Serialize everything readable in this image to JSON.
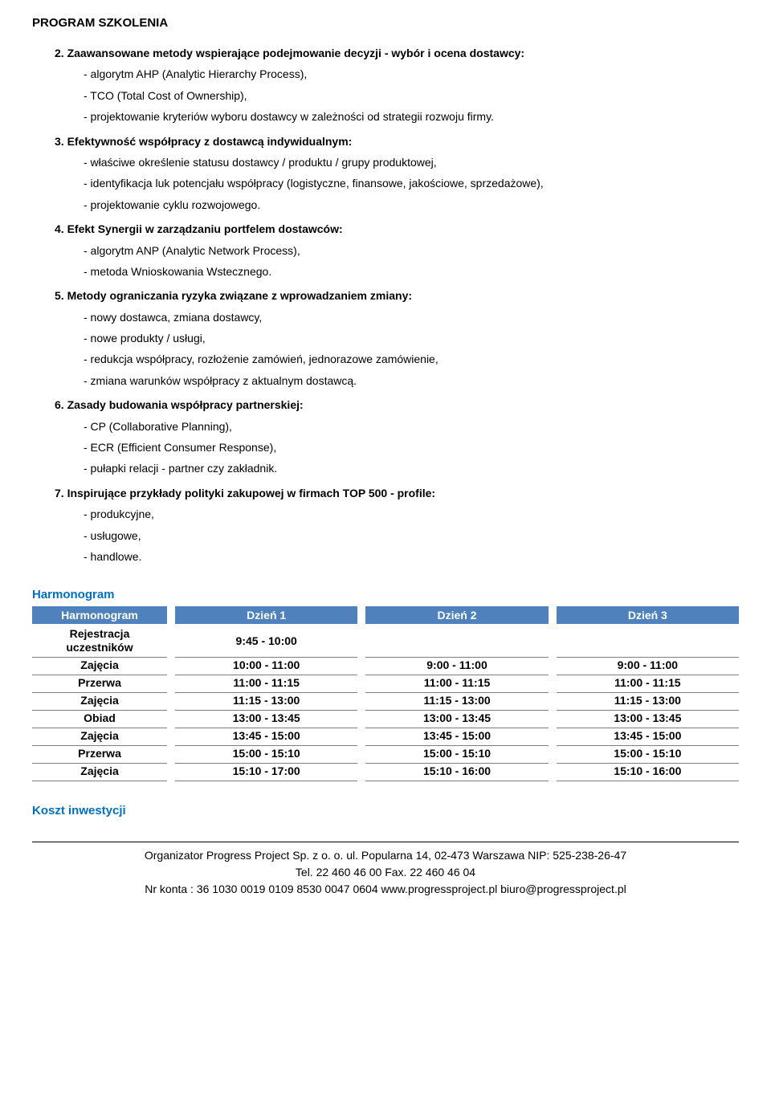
{
  "program_title": "PROGRAM SZKOLENIA",
  "items": [
    {
      "heading": "2. Zaawansowane metody wspierające podejmowanie decyzji - wybór i ocena dostawcy:",
      "subs": [
        "- algorytm AHP (Analytic Hierarchy Process),",
        "- TCO (Total Cost of Ownership),",
        "- projektowanie kryteriów wyboru dostawcy w zależności od strategii rozwoju firmy."
      ]
    },
    {
      "heading": "3. Efektywność współpracy z dostawcą indywidualnym:",
      "subs": [
        "- właściwe określenie statusu dostawcy / produktu / grupy produktowej,",
        "- identyfikacja luk potencjału współpracy (logistyczne, finansowe, jakościowe, sprzedażowe),",
        "- projektowanie cyklu rozwojowego."
      ]
    },
    {
      "heading": "4. Efekt Synergii w zarządzaniu portfelem dostawców:",
      "subs": [
        "- algorytm ANP (Analytic Network Process),",
        "- metoda Wnioskowania Wstecznego."
      ]
    },
    {
      "heading": "5. Metody ograniczania ryzyka związane z wprowadzaniem zmiany:",
      "subs": [
        "- nowy dostawca, zmiana dostawcy,",
        "- nowe produkty / usługi,",
        "- redukcja współpracy, rozłożenie zamówień, jednorazowe zamówienie,",
        "- zmiana warunków współpracy z aktualnym dostawcą."
      ]
    },
    {
      "heading": "6. Zasady budowania współpracy partnerskiej:",
      "subs": [
        "- CP (Collaborative Planning),",
        "- ECR (Efficient Consumer Response),",
        "- pułapki relacji - partner czy zakładnik."
      ]
    },
    {
      "heading": "7. Inspirujące przykłady polityki zakupowej w firmach TOP 500 - profile:",
      "subs": [
        "- produkcyjne,",
        "- usługowe,",
        "- handlowe."
      ]
    }
  ],
  "schedule": {
    "title": "Harmonogram",
    "header_label": "Harmonogram",
    "day_headers": [
      "Dzień 1",
      "Dzień 2",
      "Dzień 3"
    ],
    "row_labels": [
      "Rejestracja uczestników",
      "Zajęcia",
      "Przerwa",
      "Zajęcia",
      "Obiad",
      "Zajęcia",
      "Przerwa",
      "Zajęcia"
    ],
    "day1": [
      "9:45 - 10:00",
      "10:00 - 11:00",
      "11:00 - 11:15",
      "11:15 - 13:00",
      "13:00 - 13:45",
      "13:45 - 15:00",
      "15:00 - 15:10",
      "15:10 - 17:00"
    ],
    "day2": [
      "",
      "9:00 - 11:00",
      "11:00 - 11:15",
      "11:15 - 13:00",
      "13:00 - 13:45",
      "13:45 - 15:00",
      "15:00 - 15:10",
      "15:10 - 16:00"
    ],
    "day3": [
      "",
      "9:00 - 11:00",
      "11:00 - 11:15",
      "11:15 - 13:00",
      "13:00 - 13:45",
      "13:45 - 15:00",
      "15:00 - 15:10",
      "15:10 - 16:00"
    ],
    "colors": {
      "header_bg": "#4f81bd",
      "header_text": "#ffffff",
      "title_color": "#0070c0",
      "border": "#7f7f7f"
    }
  },
  "cost_title": "Koszt inwestycji",
  "footer": {
    "line1": "Organizator Progress Project Sp. z o. o. ul. Popularna 14, 02-473 Warszawa NIP: 525-238-26-47",
    "line2": "Tel. 22 460 46 00 Fax. 22 460 46 04",
    "line3": "Nr konta : 36 1030 0019 0109 8530 0047 0604 www.progressproject.pl  biuro@progressproject.pl"
  }
}
